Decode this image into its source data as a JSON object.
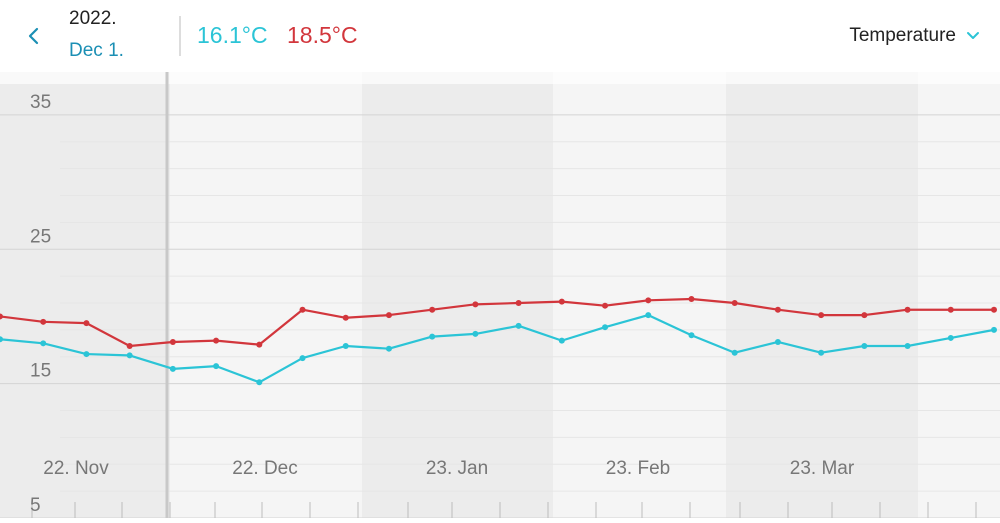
{
  "header": {
    "year": "2022.",
    "date": "Dec 1.",
    "min_temp": "16.1°C",
    "max_temp": "18.5°C",
    "metric_label": "Temperature"
  },
  "colors": {
    "min_series": "#2bc4d6",
    "max_series": "#d2363c",
    "accent": "#1b8fb4",
    "band_dark": "#ececec",
    "band_light": "#f5f5f5"
  },
  "chart_data": {
    "type": "line",
    "ylim": [
      5,
      37
    ],
    "y_ticks": [
      35,
      25,
      15,
      5
    ],
    "x_tick_labels": [
      "22. Nov",
      "22. Dec",
      "23. Jan",
      "23. Feb",
      "23. Mar"
    ],
    "grid": true,
    "series": [
      {
        "values": [
          20.0,
          19.6,
          19.5,
          17.8,
          18.1,
          18.2,
          17.9,
          20.5,
          19.9,
          20.1,
          20.5,
          20.9,
          21.0,
          21.1,
          20.8,
          21.2,
          21.3,
          21.0,
          20.5,
          20.1,
          20.1,
          20.5,
          20.5,
          20.5
        ]
      },
      {
        "values": [
          18.3,
          18.0,
          17.2,
          17.1,
          16.1,
          16.3,
          15.1,
          16.9,
          17.8,
          17.6,
          18.5,
          18.7,
          19.3,
          18.2,
          19.2,
          20.1,
          18.6,
          17.3,
          18.1,
          17.3,
          17.8,
          17.8,
          18.4,
          19.0
        ]
      }
    ]
  }
}
